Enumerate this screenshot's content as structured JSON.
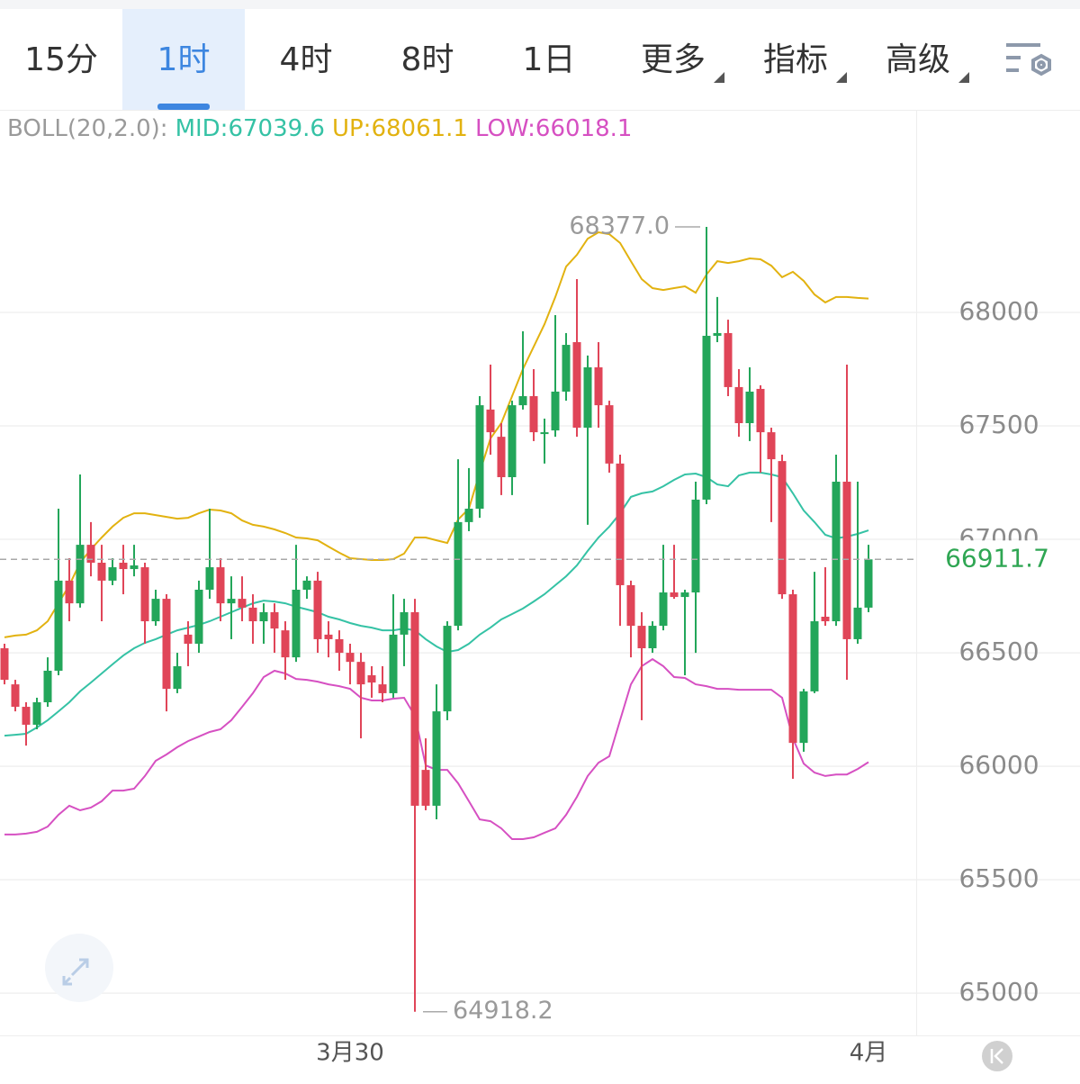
{
  "tabs": [
    "15分",
    "1时",
    "4时",
    "8时",
    "1日",
    "更多",
    "指标",
    "高级"
  ],
  "selected_tab": 1,
  "chart_data": {
    "type": "candlestick",
    "indicator": "BOLL(20,2.0):",
    "categories": [
      null,
      null,
      null,
      null,
      null,
      null,
      null,
      null,
      null,
      null,
      null,
      null,
      null,
      null,
      null,
      null,
      null,
      null,
      null,
      null,
      null,
      null,
      null,
      null,
      null,
      null,
      null,
      null,
      null,
      null,
      null,
      null,
      "3月30",
      null,
      null,
      null,
      null,
      null,
      null,
      null,
      null,
      null,
      null,
      null,
      null,
      null,
      null,
      null,
      null,
      null,
      null,
      null,
      null,
      null,
      null,
      null,
      null,
      null,
      null,
      null,
      null,
      null,
      null,
      null,
      null,
      null,
      null,
      null,
      null,
      null,
      null,
      null,
      null,
      null,
      null,
      null,
      null,
      null,
      null,
      null,
      "4月"
    ],
    "open": [
      66520,
      66361,
      66262,
      66183,
      66282,
      66421,
      66818,
      66718,
      66976,
      66897,
      66818,
      66897,
      66869,
      66877,
      66639,
      66738,
      66341,
      66580,
      66540,
      66778,
      66877,
      66718,
      66738,
      66699,
      66639,
      66679,
      66599,
      66480,
      66778,
      66818,
      66580,
      66560,
      66500,
      66460,
      66401,
      66361,
      66322,
      66580,
      66679,
      65984,
      65826,
      66242,
      66619,
      67076,
      67135,
      67572,
      67452,
      67274,
      67591,
      67631,
      67472,
      67480,
      67651,
      67869,
      67492,
      67758,
      67591,
      67334,
      66798,
      66619,
      66520,
      66619,
      66766,
      66746,
      66766,
      67175,
      67897,
      67909,
      67671,
      67512,
      67663,
      67472,
      67345,
      66758,
      66103,
      66330,
      66659,
      66639,
      67254,
      66560,
      66699
    ],
    "high": [
      66540,
      66381,
      66282,
      66302,
      66480,
      67135,
      66917,
      67286,
      67076,
      66976,
      66917,
      66976,
      66976,
      66897,
      66778,
      66758,
      66500,
      66639,
      66818,
      67135,
      66917,
      66837,
      66837,
      66758,
      66718,
      66718,
      66639,
      66976,
      66837,
      66857,
      66639,
      66599,
      66540,
      66500,
      66441,
      66441,
      66758,
      66738,
      66738,
      66123,
      66361,
      66639,
      67353,
      67314,
      67631,
      67770,
      67512,
      67611,
      67917,
      67750,
      67532,
      67988,
      67909,
      68147,
      67810,
      67869,
      67611,
      67373,
      66818,
      66679,
      66639,
      66976,
      66976,
      66778,
      67254,
      68377,
      68068,
      67968,
      67750,
      67758,
      67679,
      67492,
      67373,
      66778,
      66341,
      66857,
      66877,
      67373,
      67770,
      67254,
      66976
    ],
    "low": [
      66361,
      66242,
      66091,
      66163,
      66262,
      66401,
      66639,
      66699,
      66837,
      66639,
      66798,
      66758,
      66837,
      66540,
      66619,
      66242,
      66322,
      66441,
      66500,
      66738,
      66639,
      66560,
      66639,
      66540,
      66540,
      66500,
      66381,
      66460,
      66738,
      66500,
      66480,
      66421,
      66361,
      66123,
      66302,
      66282,
      66302,
      66441,
      64918.2,
      65806,
      65766,
      66203,
      66599,
      67036,
      67095,
      67373,
      67195,
      67195,
      67572,
      67433,
      67334,
      67452,
      67611,
      67452,
      67064,
      67492,
      67294,
      66619,
      66480,
      66203,
      66500,
      66599,
      66738,
      66401,
      66500,
      67155,
      67869,
      67631,
      67452,
      67433,
      67294,
      67076,
      66738,
      65945,
      66064,
      66322,
      66619,
      66619,
      66381,
      66540,
      66679
    ],
    "close": [
      66381,
      66262,
      66183,
      66282,
      66421,
      66818,
      66718,
      66976,
      66897,
      66818,
      66877,
      66869,
      66885,
      66639,
      66738,
      66341,
      66441,
      66540,
      66778,
      66877,
      66718,
      66738,
      66699,
      66639,
      66679,
      66607,
      66480,
      66778,
      66818,
      66560,
      66560,
      66500,
      66460,
      66361,
      66369,
      66322,
      66580,
      66679,
      65826,
      65826,
      66242,
      66619,
      67076,
      67135,
      67591,
      67472,
      67274,
      67591,
      67631,
      67472,
      67472,
      67651,
      67857,
      67492,
      67758,
      67591,
      67334,
      66798,
      66619,
      66520,
      66619,
      66766,
      66746,
      66766,
      67175,
      67897,
      67909,
      67671,
      67512,
      67651,
      67472,
      67353,
      66758,
      66103,
      66330,
      66639,
      66639,
      67254,
      66560,
      66699,
      66911.7
    ],
    "up_color": "#23a65a",
    "down_color": "#e04558",
    "series": [
      {
        "name": "MID:67039.6",
        "color": "#35c2a5",
        "values": [
          66135,
          66139,
          66143,
          66171,
          66203,
          66242,
          66282,
          66330,
          66369,
          66409,
          66449,
          66488,
          66520,
          66544,
          66560,
          66580,
          66599,
          66611,
          66623,
          66639,
          66659,
          66679,
          66699,
          66718,
          66730,
          66726,
          66718,
          66703,
          66691,
          66679,
          66659,
          66647,
          66631,
          66619,
          66611,
          66599,
          66599,
          66607,
          66599,
          66560,
          66528,
          66504,
          66512,
          66540,
          66580,
          66611,
          66647,
          66671,
          66695,
          66726,
          66758,
          66798,
          66837,
          66885,
          66949,
          67008,
          67056,
          67115,
          67187,
          67203,
          67211,
          67234,
          67262,
          67286,
          67290,
          67274,
          67242,
          67234,
          67282,
          67294,
          67294,
          67286,
          67274,
          67203,
          67127,
          67076,
          67020,
          67004,
          67012,
          67024,
          67039.6
        ]
      },
      {
        "name": "UP:68061.1",
        "color": "#e2b210",
        "values": [
          66568,
          66576,
          66580,
          66599,
          66639,
          66718,
          66798,
          66897,
          66956,
          67008,
          67056,
          67095,
          67115,
          67115,
          67107,
          67099,
          67091,
          67095,
          67115,
          67131,
          67127,
          67115,
          67083,
          67064,
          67056,
          67044,
          67028,
          67008,
          67004,
          66996,
          66968,
          66941,
          66917,
          66913,
          66909,
          66909,
          66913,
          66937,
          67008,
          67008,
          66996,
          66984,
          67087,
          67135,
          67294,
          67445,
          67512,
          67631,
          67750,
          67849,
          67948,
          68068,
          68202,
          68254,
          68325,
          68353,
          68345,
          68306,
          68226,
          68147,
          68107,
          68099,
          68107,
          68115,
          68087,
          68167,
          68226,
          68218,
          68226,
          68238,
          68234,
          68206,
          68155,
          68179,
          68139,
          68079,
          68044,
          68068,
          68068,
          68064,
          68061.1
        ]
      },
      {
        "name": "LOW:66018.1",
        "color": "#d650c2",
        "values": [
          65699,
          65699,
          65703,
          65711,
          65734,
          65786,
          65826,
          65806,
          65818,
          65846,
          65893,
          65893,
          65901,
          65957,
          66024,
          66052,
          66084,
          66111,
          66131,
          66151,
          66163,
          66203,
          66262,
          66322,
          66393,
          66421,
          66409,
          66385,
          66381,
          66373,
          66361,
          66353,
          66341,
          66302,
          66290,
          66290,
          66298,
          66302,
          66222,
          66004,
          65984,
          65984,
          65925,
          65846,
          65766,
          65758,
          65726,
          65679,
          65679,
          65687,
          65707,
          65726,
          65786,
          65865,
          65957,
          66016,
          66044,
          66203,
          66361,
          66441,
          66472,
          66441,
          66393,
          66389,
          66361,
          66353,
          66341,
          66341,
          66337,
          66337,
          66337,
          66337,
          66302,
          66123,
          66012,
          65972,
          65957,
          65964,
          65964,
          65988,
          66018.1
        ]
      }
    ],
    "annotations": [
      {
        "value": 68377,
        "label": "68377.0"
      },
      {
        "value": 64918.2,
        "label": "64918.2"
      }
    ],
    "ylim": [
      64814,
      68742
    ],
    "yticks": [
      65000,
      65500,
      66000,
      66500,
      67000,
      67500,
      68000
    ],
    "grid": true
  }
}
